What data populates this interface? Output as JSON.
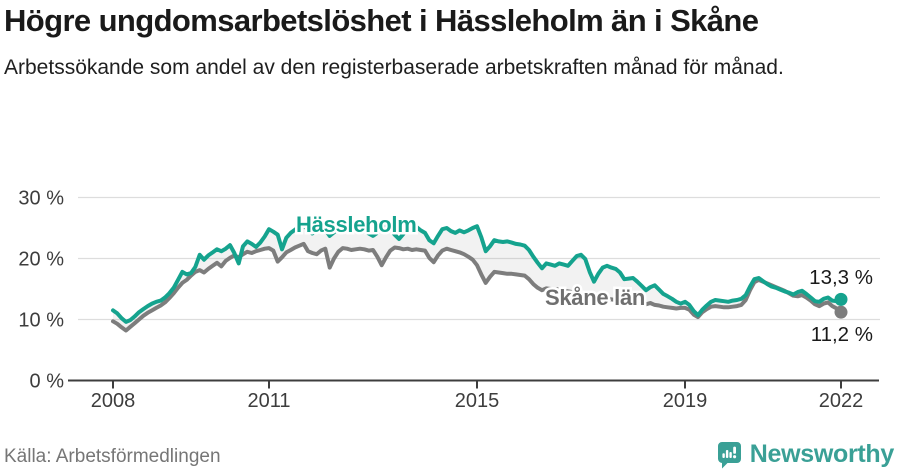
{
  "header": {
    "title": "Högre ungdomsarbetslöshet i Hässleholm än i Skåne",
    "subtitle": "Arbetssökande som andel av den registerbaserade arbetskraften månad för månad."
  },
  "footer": {
    "source": "Källa: Arbetsförmedlingen",
    "brand_name": "Newsworthy",
    "brand_color": "#3aa096",
    "brand_icon": "bar-chart-speech-bubble-icon"
  },
  "chart_data": {
    "type": "line",
    "title": "Högre ungdomsarbetslöshet i Hässleholm än i Skåne",
    "x_start": "2008-01",
    "x_end": "2022-01",
    "points_per_year": 12,
    "x_tick_years": [
      2008,
      2011,
      2015,
      2019,
      2022
    ],
    "y_ticks": [
      {
        "value": 0,
        "label": "0 %"
      },
      {
        "value": 10,
        "label": "10 %"
      },
      {
        "value": 20,
        "label": "20 %"
      },
      {
        "value": 30,
        "label": "30 %"
      }
    ],
    "ylim": [
      0,
      32
    ],
    "grid": true,
    "legend_position": "inline-labels",
    "axis_color": "#3d3d3d",
    "grid_color": "#dddddd",
    "gap_fill_color": "rgba(150,150,150,0.12)",
    "series": [
      {
        "name": "Hässleholm",
        "color": "#15a38e",
        "end_label": "13,3 %",
        "values": [
          11.5,
          11.0,
          10.2,
          9.6,
          9.9,
          10.5,
          11.2,
          11.7,
          12.2,
          12.6,
          12.9,
          13.1,
          13.6,
          14.3,
          15.2,
          16.5,
          17.8,
          17.4,
          17.6,
          18.6,
          20.6,
          19.8,
          20.5,
          21.0,
          21.5,
          21.2,
          21.6,
          22.2,
          20.9,
          19.2,
          22.0,
          22.8,
          22.4,
          21.9,
          22.6,
          23.6,
          24.8,
          24.4,
          23.9,
          21.5,
          23.4,
          24.2,
          24.7,
          25.3,
          25.5,
          24.6,
          24.1,
          24.6,
          25.2,
          24.7,
          23.7,
          24.3,
          24.9,
          25.1,
          24.7,
          24.4,
          24.6,
          24.9,
          24.5,
          24.1,
          23.7,
          24.2,
          24.9,
          25.3,
          24.7,
          23.9,
          23.2,
          24.0,
          25.0,
          25.4,
          25.2,
          24.6,
          24.2,
          23.0,
          22.5,
          23.7,
          24.8,
          25.0,
          24.5,
          24.2,
          24.6,
          24.3,
          24.6,
          25.0,
          25.3,
          23.5,
          21.2,
          22.0,
          23.0,
          22.8,
          22.7,
          22.8,
          22.6,
          22.4,
          22.3,
          22.1,
          21.4,
          20.3,
          19.3,
          18.4,
          19.2,
          19.0,
          18.8,
          19.2,
          19.0,
          18.8,
          19.6,
          20.4,
          20.6,
          19.9,
          17.8,
          16.2,
          17.5,
          18.5,
          18.8,
          18.5,
          18.3,
          17.7,
          16.6,
          16.7,
          16.8,
          16.2,
          15.5,
          14.8,
          15.3,
          15.6,
          14.9,
          14.2,
          13.8,
          13.4,
          12.9,
          12.6,
          12.9,
          12.4,
          11.4,
          10.7,
          11.6,
          12.3,
          12.9,
          13.2,
          13.1,
          13.0,
          12.9,
          13.1,
          13.2,
          13.4,
          14.0,
          15.4,
          16.6,
          16.8,
          16.3,
          15.8,
          15.4,
          15.2,
          14.9,
          14.6,
          14.4,
          14.1,
          14.5,
          14.7,
          14.2,
          13.6,
          13.0,
          12.9,
          13.4,
          13.6,
          13.1,
          13.0,
          13.3
        ]
      },
      {
        "name": "Skåne län",
        "color": "#7d7d7d",
        "end_label": "11,2 %",
        "values": [
          9.7,
          9.3,
          8.7,
          8.2,
          8.8,
          9.4,
          10.0,
          10.6,
          11.1,
          11.5,
          11.9,
          12.3,
          12.8,
          13.5,
          14.3,
          15.2,
          16.0,
          16.5,
          17.2,
          17.8,
          18.1,
          17.7,
          18.3,
          18.8,
          19.3,
          18.7,
          19.6,
          20.1,
          20.5,
          20.2,
          20.7,
          21.1,
          20.9,
          21.2,
          21.4,
          21.6,
          21.7,
          21.3,
          19.5,
          20.2,
          21.0,
          21.4,
          21.8,
          22.1,
          22.4,
          21.2,
          20.9,
          20.7,
          21.3,
          21.6,
          18.5,
          20.0,
          21.1,
          21.7,
          21.6,
          21.4,
          21.5,
          21.6,
          21.5,
          21.3,
          21.4,
          20.3,
          18.9,
          20.2,
          21.3,
          21.8,
          21.7,
          21.5,
          21.6,
          21.4,
          21.5,
          21.4,
          21.3,
          20.1,
          19.4,
          20.5,
          21.3,
          21.6,
          21.4,
          21.2,
          21.0,
          20.7,
          20.3,
          19.8,
          18.9,
          17.4,
          16.0,
          17.0,
          17.8,
          17.7,
          17.6,
          17.5,
          17.5,
          17.4,
          17.3,
          17.2,
          16.6,
          15.8,
          15.2,
          14.8,
          15.1,
          15.0,
          14.9,
          15.0,
          14.8,
          14.6,
          14.5,
          14.3,
          14.2,
          13.8,
          13.2,
          12.8,
          13.1,
          13.4,
          13.5,
          13.3,
          13.2,
          13.0,
          12.8,
          13.0,
          13.2,
          13.5,
          12.9,
          12.5,
          12.7,
          12.4,
          12.3,
          12.1,
          12.0,
          11.9,
          11.8,
          11.9,
          11.9,
          11.6,
          10.8,
          10.4,
          11.2,
          11.7,
          12.1,
          12.2,
          12.1,
          12.0,
          12.0,
          12.1,
          12.2,
          12.4,
          13.2,
          14.8,
          16.1,
          16.5,
          16.2,
          15.9,
          15.6,
          15.3,
          15.0,
          14.7,
          14.3,
          13.9,
          13.8,
          14.0,
          13.6,
          13.1,
          12.5,
          12.2,
          12.6,
          12.8,
          12.2,
          11.8,
          11.2
        ]
      }
    ]
  }
}
